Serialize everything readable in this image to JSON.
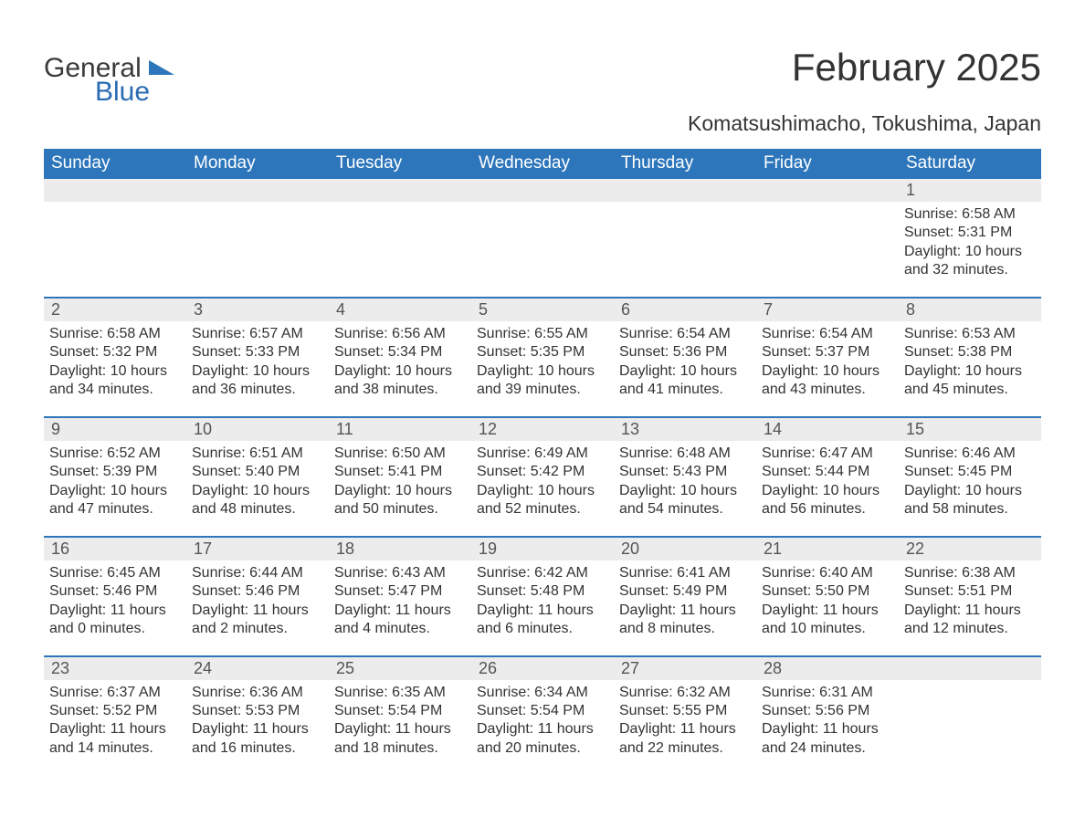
{
  "logo": {
    "text1": "General",
    "text2": "Blue",
    "tri_color": "#2d76bb"
  },
  "title": "February 2025",
  "location": "Komatsushimacho, Tokushima, Japan",
  "colors": {
    "header_bg": "#2d76bb",
    "header_text": "#ffffff",
    "daynum_bg": "#ececec",
    "week_border": "#2d76bb",
    "body_text": "#333333"
  },
  "weekdays": [
    "Sunday",
    "Monday",
    "Tuesday",
    "Wednesday",
    "Thursday",
    "Friday",
    "Saturday"
  ],
  "weeks": [
    [
      null,
      null,
      null,
      null,
      null,
      null,
      {
        "n": "1",
        "sunrise": "Sunrise: 6:58 AM",
        "sunset": "Sunset: 5:31 PM",
        "day1": "Daylight: 10 hours",
        "day2": "and 32 minutes."
      }
    ],
    [
      {
        "n": "2",
        "sunrise": "Sunrise: 6:58 AM",
        "sunset": "Sunset: 5:32 PM",
        "day1": "Daylight: 10 hours",
        "day2": "and 34 minutes."
      },
      {
        "n": "3",
        "sunrise": "Sunrise: 6:57 AM",
        "sunset": "Sunset: 5:33 PM",
        "day1": "Daylight: 10 hours",
        "day2": "and 36 minutes."
      },
      {
        "n": "4",
        "sunrise": "Sunrise: 6:56 AM",
        "sunset": "Sunset: 5:34 PM",
        "day1": "Daylight: 10 hours",
        "day2": "and 38 minutes."
      },
      {
        "n": "5",
        "sunrise": "Sunrise: 6:55 AM",
        "sunset": "Sunset: 5:35 PM",
        "day1": "Daylight: 10 hours",
        "day2": "and 39 minutes."
      },
      {
        "n": "6",
        "sunrise": "Sunrise: 6:54 AM",
        "sunset": "Sunset: 5:36 PM",
        "day1": "Daylight: 10 hours",
        "day2": "and 41 minutes."
      },
      {
        "n": "7",
        "sunrise": "Sunrise: 6:54 AM",
        "sunset": "Sunset: 5:37 PM",
        "day1": "Daylight: 10 hours",
        "day2": "and 43 minutes."
      },
      {
        "n": "8",
        "sunrise": "Sunrise: 6:53 AM",
        "sunset": "Sunset: 5:38 PM",
        "day1": "Daylight: 10 hours",
        "day2": "and 45 minutes."
      }
    ],
    [
      {
        "n": "9",
        "sunrise": "Sunrise: 6:52 AM",
        "sunset": "Sunset: 5:39 PM",
        "day1": "Daylight: 10 hours",
        "day2": "and 47 minutes."
      },
      {
        "n": "10",
        "sunrise": "Sunrise: 6:51 AM",
        "sunset": "Sunset: 5:40 PM",
        "day1": "Daylight: 10 hours",
        "day2": "and 48 minutes."
      },
      {
        "n": "11",
        "sunrise": "Sunrise: 6:50 AM",
        "sunset": "Sunset: 5:41 PM",
        "day1": "Daylight: 10 hours",
        "day2": "and 50 minutes."
      },
      {
        "n": "12",
        "sunrise": "Sunrise: 6:49 AM",
        "sunset": "Sunset: 5:42 PM",
        "day1": "Daylight: 10 hours",
        "day2": "and 52 minutes."
      },
      {
        "n": "13",
        "sunrise": "Sunrise: 6:48 AM",
        "sunset": "Sunset: 5:43 PM",
        "day1": "Daylight: 10 hours",
        "day2": "and 54 minutes."
      },
      {
        "n": "14",
        "sunrise": "Sunrise: 6:47 AM",
        "sunset": "Sunset: 5:44 PM",
        "day1": "Daylight: 10 hours",
        "day2": "and 56 minutes."
      },
      {
        "n": "15",
        "sunrise": "Sunrise: 6:46 AM",
        "sunset": "Sunset: 5:45 PM",
        "day1": "Daylight: 10 hours",
        "day2": "and 58 minutes."
      }
    ],
    [
      {
        "n": "16",
        "sunrise": "Sunrise: 6:45 AM",
        "sunset": "Sunset: 5:46 PM",
        "day1": "Daylight: 11 hours",
        "day2": "and 0 minutes."
      },
      {
        "n": "17",
        "sunrise": "Sunrise: 6:44 AM",
        "sunset": "Sunset: 5:46 PM",
        "day1": "Daylight: 11 hours",
        "day2": "and 2 minutes."
      },
      {
        "n": "18",
        "sunrise": "Sunrise: 6:43 AM",
        "sunset": "Sunset: 5:47 PM",
        "day1": "Daylight: 11 hours",
        "day2": "and 4 minutes."
      },
      {
        "n": "19",
        "sunrise": "Sunrise: 6:42 AM",
        "sunset": "Sunset: 5:48 PM",
        "day1": "Daylight: 11 hours",
        "day2": "and 6 minutes."
      },
      {
        "n": "20",
        "sunrise": "Sunrise: 6:41 AM",
        "sunset": "Sunset: 5:49 PM",
        "day1": "Daylight: 11 hours",
        "day2": "and 8 minutes."
      },
      {
        "n": "21",
        "sunrise": "Sunrise: 6:40 AM",
        "sunset": "Sunset: 5:50 PM",
        "day1": "Daylight: 11 hours",
        "day2": "and 10 minutes."
      },
      {
        "n": "22",
        "sunrise": "Sunrise: 6:38 AM",
        "sunset": "Sunset: 5:51 PM",
        "day1": "Daylight: 11 hours",
        "day2": "and 12 minutes."
      }
    ],
    [
      {
        "n": "23",
        "sunrise": "Sunrise: 6:37 AM",
        "sunset": "Sunset: 5:52 PM",
        "day1": "Daylight: 11 hours",
        "day2": "and 14 minutes."
      },
      {
        "n": "24",
        "sunrise": "Sunrise: 6:36 AM",
        "sunset": "Sunset: 5:53 PM",
        "day1": "Daylight: 11 hours",
        "day2": "and 16 minutes."
      },
      {
        "n": "25",
        "sunrise": "Sunrise: 6:35 AM",
        "sunset": "Sunset: 5:54 PM",
        "day1": "Daylight: 11 hours",
        "day2": "and 18 minutes."
      },
      {
        "n": "26",
        "sunrise": "Sunrise: 6:34 AM",
        "sunset": "Sunset: 5:54 PM",
        "day1": "Daylight: 11 hours",
        "day2": "and 20 minutes."
      },
      {
        "n": "27",
        "sunrise": "Sunrise: 6:32 AM",
        "sunset": "Sunset: 5:55 PM",
        "day1": "Daylight: 11 hours",
        "day2": "and 22 minutes."
      },
      {
        "n": "28",
        "sunrise": "Sunrise: 6:31 AM",
        "sunset": "Sunset: 5:56 PM",
        "day1": "Daylight: 11 hours",
        "day2": "and 24 minutes."
      },
      null
    ]
  ]
}
